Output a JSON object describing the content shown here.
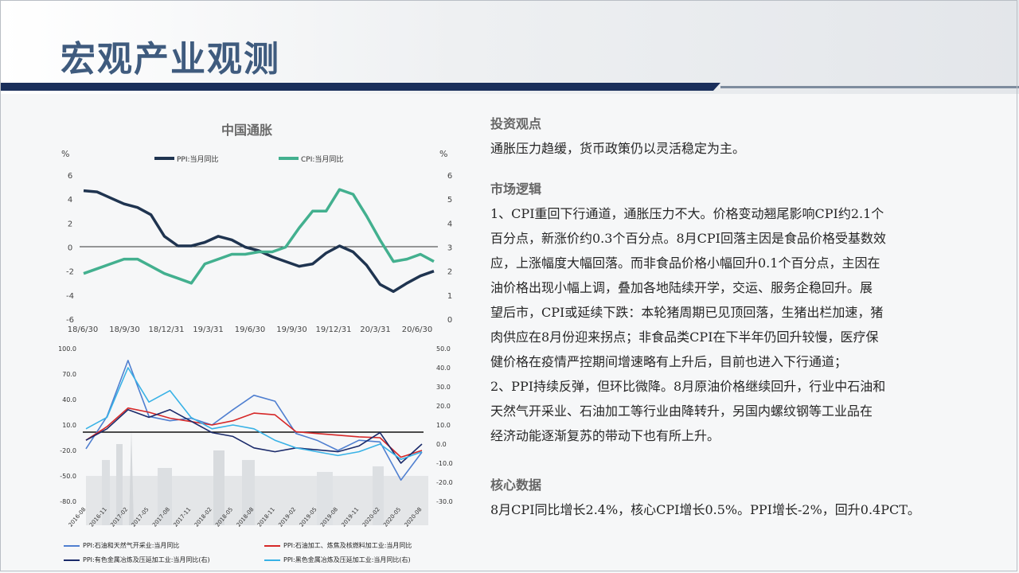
{
  "page": {
    "title": "宏观产业观测"
  },
  "chart1": {
    "title": "中国通胀",
    "left_unit": "%",
    "right_unit": "%",
    "left_ticks": [
      "6",
      "4",
      "2",
      "0",
      "-2",
      "-4",
      "-6"
    ],
    "right_ticks": [
      "6",
      "5",
      "4",
      "3",
      "2",
      "1",
      "0"
    ],
    "x_ticks": [
      "18/6/30",
      "18/9/30",
      "18/12/31",
      "19/3/31",
      "19/6/30",
      "19/9/30",
      "19/12/31",
      "20/3/31",
      "20/6/30"
    ],
    "legend": [
      "PPI:当月同比",
      "CPI:当月同比"
    ]
  },
  "chart2": {
    "left_ticks": [
      "100.0",
      "70.0",
      "40.0",
      "10.0",
      "-20.0",
      "-50.0",
      "-80.0"
    ],
    "right_ticks": [
      "50.0",
      "40.0",
      "30.0",
      "20.0",
      "10.0",
      "0.0",
      "-10.0",
      "-20.0",
      "-30.0"
    ],
    "x_ticks": [
      "2016-08",
      "2016-11",
      "2017-02",
      "2017-05",
      "2017-08",
      "2017-11",
      "2018-02",
      "2018-05",
      "2018-08",
      "2018-11",
      "2019-02",
      "2019-05",
      "2019-08",
      "2019-11",
      "2020-02",
      "2020-05",
      "2020-08"
    ],
    "legend": [
      "PPI:石油和天然气开采业:当月同比",
      "PPI:石油加工、炼焦及核燃料加工业:当月同比",
      "PPI:有色金属冶炼及压延加工业:当月同比(右)",
      "PPI:黑色金属冶炼及压延加工业:当月同比(右)"
    ]
  },
  "chart_data": [
    {
      "type": "line",
      "title": "中国通胀",
      "x": [
        "18/6/30",
        "18/7/31",
        "18/8/31",
        "18/9/30",
        "18/10/31",
        "18/11/30",
        "18/12/31",
        "19/1/31",
        "19/2/28",
        "19/3/31",
        "19/4/30",
        "19/5/31",
        "19/6/30",
        "19/7/31",
        "19/8/31",
        "19/9/30",
        "19/10/31",
        "19/11/30",
        "19/12/31",
        "20/1/31",
        "20/2/29",
        "20/3/31",
        "20/4/30",
        "20/5/31",
        "20/6/30",
        "20/7/31",
        "20/8/31"
      ],
      "series": [
        {
          "name": "PPI:当月同比",
          "axis": "left",
          "color": "#1f3450",
          "values": [
            4.7,
            4.6,
            4.1,
            3.6,
            3.3,
            2.7,
            0.9,
            0.1,
            0.1,
            0.4,
            0.9,
            0.6,
            0.0,
            -0.3,
            -0.8,
            -1.2,
            -1.6,
            -1.4,
            -0.5,
            0.1,
            -0.4,
            -1.5,
            -3.1,
            -3.7,
            -3.0,
            -2.4,
            -2.0
          ]
        },
        {
          "name": "CPI:当月同比",
          "axis": "right",
          "color": "#43b08f",
          "values": [
            1.9,
            2.1,
            2.3,
            2.5,
            2.5,
            2.2,
            1.9,
            1.7,
            1.5,
            2.3,
            2.5,
            2.7,
            2.7,
            2.8,
            2.8,
            3.0,
            3.8,
            4.5,
            4.5,
            5.4,
            5.2,
            4.3,
            3.3,
            2.4,
            2.5,
            2.7,
            2.4
          ]
        }
      ],
      "ylim_left": [
        -6,
        6
      ],
      "ylim_right": [
        0,
        6
      ],
      "y_unit": "%"
    },
    {
      "type": "line",
      "x": [
        "2016-08",
        "2016-11",
        "2017-02",
        "2017-05",
        "2017-08",
        "2017-11",
        "2018-02",
        "2018-05",
        "2018-08",
        "2018-11",
        "2019-02",
        "2019-05",
        "2019-08",
        "2019-11",
        "2020-02",
        "2020-05",
        "2020-08"
      ],
      "series": [
        {
          "name": "PPI:石油和天然气开采业:当月同比",
          "axis": "left",
          "color": "#4f7fd0",
          "values": [
            -18,
            20,
            86,
            20,
            15,
            18,
            10,
            28,
            45,
            38,
            0,
            -8,
            -20,
            -8,
            -10,
            -55,
            -22
          ]
        },
        {
          "name": "PPI:石油加工、炼焦及核燃料加工业:当月同比",
          "axis": "left",
          "color": "#d62828",
          "values": [
            -8,
            8,
            30,
            25,
            18,
            14,
            10,
            15,
            24,
            22,
            2,
            0,
            -2,
            -4,
            -5,
            -28,
            -20
          ]
        },
        {
          "name": "PPI:有色金属冶炼及压延加工业:当月同比(右)",
          "axis": "right",
          "color": "#1a2a6a",
          "values": [
            2,
            8,
            18,
            14,
            18,
            12,
            6,
            4,
            -2,
            -4,
            -2,
            -3,
            -4,
            -1,
            6,
            -10,
            0
          ]
        },
        {
          "name": "PPI:黑色金属冶炼及压延加工业:当月同比(右)",
          "axis": "right",
          "color": "#38b2e6",
          "values": [
            8,
            14,
            40,
            22,
            28,
            14,
            8,
            10,
            8,
            2,
            -2,
            -4,
            -6,
            -4,
            0,
            -8,
            -4
          ]
        }
      ],
      "ylim_left": [
        -80,
        100
      ],
      "ylim_right": [
        -30,
        50
      ]
    }
  ],
  "text": {
    "h1": "投资观点",
    "p1": "通胀压力趋缓，货币政策仍以灵活稳定为主。",
    "h2": "市场逻辑",
    "p2_lines": [
      "1、CPI重回下行通道，通胀压力不大。价格变动翘尾影响CPI约2.1个",
      "百分点，新涨价约0.3个百分点。8月CPI回落主因是食品价格受基数效",
      "应，上涨幅度大幅回落。而非食品价格小幅回升0.1个百分点，主因在",
      "油价格出现小幅上调，叠加各地陆续开学，交运、服务企稳回升。展",
      "望后市，CPI或延续下跌：本轮猪周期已见顶回落，生猪出栏加速，猪",
      "肉供应在8月份迎来拐点；非食品类CPI在下半年仍回升较慢，医疗保",
      "健价格在疫情严控期间增速略有上升后，目前也进入下行通道；",
      "2、PPI持续反弹，但环比微降。8月原油价格继续回升，行业中石油和",
      "天然气开采业、石油加工等行业由降转升，另国内螺纹钢等工业品在",
      "经济动能逐渐复苏的带动下也有所上升。"
    ],
    "h3": "核心数据",
    "p3": "8月CPI同比增长2.4%，核心CPI增长0.5%。PPI增长-2%，回升0.4PCT。"
  }
}
